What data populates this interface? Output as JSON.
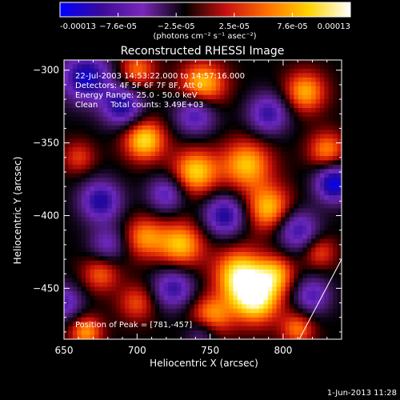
{
  "colorbar": {
    "tick_labels": [
      "-0.00013",
      "−7.6e-05",
      "−2.5e-05",
      "2.5e-05",
      "7.6e-05",
      "0.00013"
    ],
    "unit_label": "(photons cm⁻² s⁻¹ asec⁻²)",
    "range": [
      -0.00013,
      0.00013
    ],
    "colors": [
      "#0000ff",
      "#3a0a9a",
      "#7a28b8",
      "#000000",
      "#c81010",
      "#ff7000",
      "#ffd400",
      "#ffffff"
    ]
  },
  "chart_data": {
    "type": "heatmap",
    "title": "Reconstructed RHESSI Image",
    "xlabel": "Heliocentric X (arcsec)",
    "ylabel": "Heliocentric Y (arcsec)",
    "xlim": [
      650,
      840
    ],
    "ylim": [
      -485,
      -293
    ],
    "x_ticks": [
      650,
      700,
      750,
      800
    ],
    "y_ticks": [
      -300,
      -350,
      -400,
      -450
    ],
    "x_tick_labels": [
      "650",
      "700",
      "750",
      "800"
    ],
    "y_tick_labels": [
      "−300",
      "−350",
      "−400",
      "−450"
    ],
    "annotations": [
      "22-Jul-2003 14:53:22.000 to 14:57:16.000",
      "Detectors: 4F 5F 6F 7F 8F, Att 0",
      "Energy Range: 25.0 - 50.0 keV",
      "Clean     Total counts: 3.49E+03"
    ],
    "peak_label": "Position of Peak = [781,-457]",
    "peak": [
      781,
      -457
    ],
    "limb_line": [
      [
        811,
        -485
      ],
      [
        840,
        -430
      ]
    ],
    "blobs": [
      {
        "x": 781,
        "y": -457,
        "v": 1.0,
        "s": 12
      },
      {
        "x": 770,
        "y": -440,
        "v": 0.85,
        "s": 12
      },
      {
        "x": 795,
        "y": -440,
        "v": 0.6,
        "s": 9
      },
      {
        "x": 750,
        "y": -470,
        "v": 0.7,
        "s": 10
      },
      {
        "x": 730,
        "y": -420,
        "v": 0.75,
        "s": 11
      },
      {
        "x": 705,
        "y": -415,
        "v": 0.6,
        "s": 10
      },
      {
        "x": 705,
        "y": -348,
        "v": 0.85,
        "s": 10
      },
      {
        "x": 745,
        "y": -310,
        "v": 0.8,
        "s": 11
      },
      {
        "x": 740,
        "y": -370,
        "v": 0.8,
        "s": 11
      },
      {
        "x": 775,
        "y": -365,
        "v": 0.75,
        "s": 12
      },
      {
        "x": 790,
        "y": -395,
        "v": 0.75,
        "s": 11
      },
      {
        "x": 815,
        "y": -315,
        "v": 0.7,
        "s": 10
      },
      {
        "x": 830,
        "y": -355,
        "v": 0.6,
        "s": 9
      },
      {
        "x": 675,
        "y": -440,
        "v": 0.5,
        "s": 9
      },
      {
        "x": 665,
        "y": -480,
        "v": 0.65,
        "s": 8
      },
      {
        "x": 810,
        "y": -478,
        "v": 0.55,
        "s": 8
      },
      {
        "x": 700,
        "y": -300,
        "v": 0.55,
        "s": 9
      },
      {
        "x": 660,
        "y": -360,
        "v": 0.4,
        "s": 8
      },
      {
        "x": 700,
        "y": -460,
        "v": 0.45,
        "s": 9
      },
      {
        "x": 825,
        "y": -425,
        "v": 0.45,
        "s": 8
      },
      {
        "x": 665,
        "y": -305,
        "v": -0.9,
        "s": 12
      },
      {
        "x": 690,
        "y": -325,
        "v": -0.8,
        "s": 10
      },
      {
        "x": 740,
        "y": -330,
        "v": -0.7,
        "s": 10
      },
      {
        "x": 790,
        "y": -330,
        "v": -0.7,
        "s": 10
      },
      {
        "x": 835,
        "y": -378,
        "v": -1.0,
        "s": 9
      },
      {
        "x": 675,
        "y": -390,
        "v": -0.8,
        "s": 10
      },
      {
        "x": 720,
        "y": -385,
        "v": -0.6,
        "s": 9
      },
      {
        "x": 760,
        "y": -400,
        "v": -0.8,
        "s": 10
      },
      {
        "x": 810,
        "y": -410,
        "v": -0.7,
        "s": 10
      },
      {
        "x": 680,
        "y": -420,
        "v": -0.5,
        "s": 9
      },
      {
        "x": 725,
        "y": -450,
        "v": -0.7,
        "s": 10
      },
      {
        "x": 820,
        "y": -455,
        "v": -0.6,
        "s": 9
      },
      {
        "x": 745,
        "y": -480,
        "v": -0.5,
        "s": 8
      },
      {
        "x": 650,
        "y": -460,
        "v": -0.6,
        "s": 9
      }
    ]
  },
  "footer": {
    "date": "1-Jun-2013 11:28"
  }
}
